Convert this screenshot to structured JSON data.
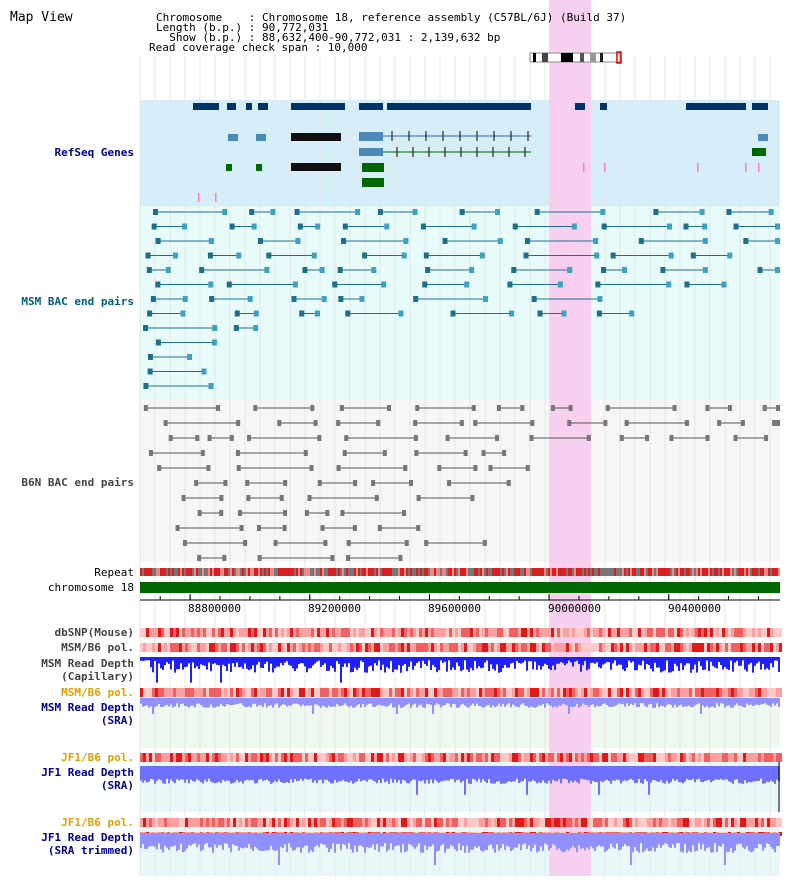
{
  "header": {
    "title": "Map View",
    "chromosome_line": "Chromosome    : Chromosome 18, reference assembly (C57BL/6J) (Build 37)",
    "length_line": "Length (b.p.) : 90,772,031",
    "show_line": "  Show (b.p.) : 88,632,400-90,772,031 : 2,139,632 bp",
    "coverage_line": "Read coverage check span : 10,000"
  },
  "tracks": {
    "refseq": "RefSeq Genes",
    "msm_bac": "MSM BAC end pairs",
    "b6n_bac": "B6N BAC end pairs",
    "repeat": "Repeat",
    "chromosome": "chromosome 18",
    "dbsnp": "dbSNP(Mouse)",
    "msm_b6_pol_1": "MSM/B6 pol.",
    "msm_read_depth_cap_1": "MSM Read Depth",
    "msm_read_depth_cap_2": "(Capillary)",
    "msm_b6_pol_2": "MSM/B6 pol.",
    "msm_read_depth_sra_1": "MSM Read Depth",
    "msm_read_depth_sra_2": "(SRA)",
    "jf1_b6_pol_1": "JF1/B6 pol.",
    "jf1_read_depth_sra_1": "JF1 Read Depth",
    "jf1_read_depth_sra_2": "(SRA)",
    "jf1_b6_pol_2": "JF1/B6 pol.",
    "jf1_read_depth_trim_1": "JF1 Read Depth",
    "jf1_read_depth_trim_2": "(SRA trimmed)"
  },
  "axis": {
    "range_start": 88632400,
    "range_end": 90772031,
    "ticks": [
      "88800000",
      "89200000",
      "89600000",
      "90000000",
      "90400000"
    ],
    "tick_values": [
      88800000,
      89200000,
      89600000,
      90000000,
      90400000
    ]
  },
  "highlight": {
    "start": 90000000,
    "end": 90140000
  },
  "colors": {
    "refseq_bg": "#d6eef8",
    "bac_bg": "#e8fbfb",
    "highlight": "#f6d0ee",
    "gene_dark": "#003366",
    "gene_mid": "#4a8ab8",
    "gene_green": "#006600",
    "bac_teal": "#1f6f8b",
    "bac_gray": "#555555",
    "depth_blue": "#1f1fff",
    "depth_light": "#7070ff",
    "pol_red": "#ee2222"
  }
}
